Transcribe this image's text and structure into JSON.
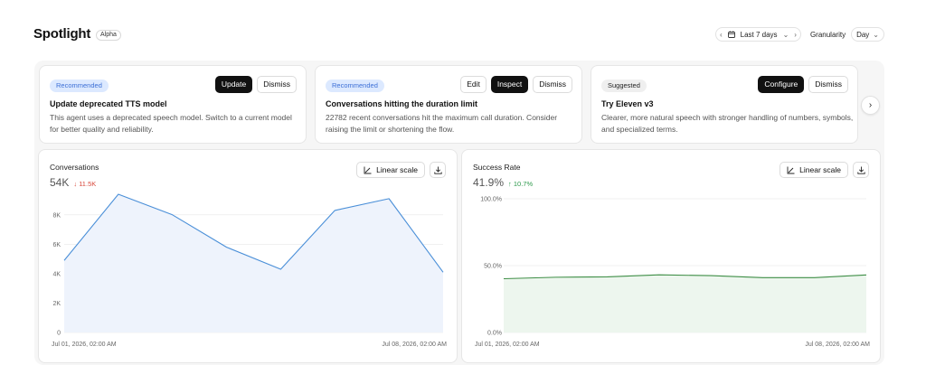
{
  "header": {
    "title": "Spotlight",
    "badge": "Alpha",
    "date_range": "Last 7 days",
    "granularity_label": "Granularity",
    "granularity_value": "Day"
  },
  "cards": [
    {
      "badge": "Recommended",
      "badge_kind": "rec",
      "title": "Update deprecated TTS model",
      "description": "This agent uses a deprecated speech model. Switch to a current model for better quality and reliability.",
      "actions": [
        {
          "label": "Update",
          "primary": true
        },
        {
          "label": "Dismiss",
          "primary": false
        }
      ]
    },
    {
      "badge": "Recommended",
      "badge_kind": "rec",
      "title": "Conversations hitting the duration limit",
      "description": "22782 recent conversations hit the maximum call duration. Consider raising the limit or shortening the flow.",
      "actions": [
        {
          "label": "Edit",
          "primary": false
        },
        {
          "label": "Inspect",
          "primary": true
        },
        {
          "label": "Dismiss",
          "primary": false
        }
      ]
    },
    {
      "badge": "Suggested",
      "badge_kind": "sug",
      "title": "Try Eleven v3",
      "description": "Clearer, more natural speech with stronger handling of numbers, symbols, and specialized terms.",
      "actions": [
        {
          "label": "Configure",
          "primary": true
        },
        {
          "label": "Dismiss",
          "primary": false
        }
      ]
    }
  ],
  "charts": {
    "scale_label": "Linear scale",
    "conversations": {
      "title": "Conversations",
      "value": "54K",
      "delta": "↓ 11.5K",
      "x_start": "Jul 01, 2026, 02:00 AM",
      "x_end": "Jul 08, 2026, 02:00 AM"
    },
    "success": {
      "title": "Success Rate",
      "value": "41.9%",
      "delta": "↑ 10.7%",
      "x_start": "Jul 01, 2026, 02:00 AM",
      "x_end": "Jul 08, 2026, 02:00 AM"
    }
  },
  "colors": {
    "conversations_line": "#4a8fd8",
    "conversations_fill": "#eef3fc",
    "success_line": "#3e8e46",
    "success_fill": "#edf6ee"
  },
  "chart_data": [
    {
      "type": "area",
      "title": "Conversations",
      "x": [
        "Jul 01, 2026, 02:00 AM",
        "Jul 02",
        "Jul 03",
        "Jul 04",
        "Jul 05",
        "Jul 06",
        "Jul 07",
        "Jul 08, 2026, 02:00 AM"
      ],
      "x_tick_labels": [
        "Jul 01, 2026, 02:00 AM",
        "Jul 08, 2026, 02:00 AM"
      ],
      "values": [
        4900,
        9400,
        8000,
        5800,
        4300,
        8300,
        9100,
        4100
      ],
      "y_ticks": [
        "0",
        "2K",
        "4K",
        "6K",
        "8K"
      ],
      "ylim": [
        0,
        9400
      ],
      "grid": true
    },
    {
      "type": "area",
      "title": "Success Rate",
      "x": [
        "Jul 01, 2026, 02:00 AM",
        "Jul 02",
        "Jul 03",
        "Jul 04",
        "Jul 05",
        "Jul 06",
        "Jul 07",
        "Jul 08, 2026, 02:00 AM"
      ],
      "x_tick_labels": [
        "Jul 01, 2026, 02:00 AM",
        "Jul 08, 2026, 02:00 AM"
      ],
      "values": [
        40.2,
        41.3,
        41.6,
        43.1,
        42.5,
        41.0,
        41.0,
        43.0
      ],
      "y_ticks": [
        "0.0%",
        "50.0%",
        "100.0%"
      ],
      "ylim": [
        0,
        100
      ],
      "grid": true
    }
  ]
}
